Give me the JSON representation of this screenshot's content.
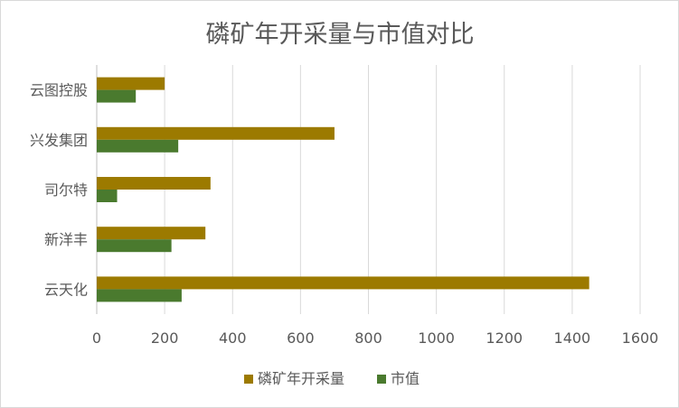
{
  "chart_data": {
    "type": "bar",
    "orientation": "horizontal",
    "title": "磷矿年开采量与市值对比",
    "categories": [
      "云图控股",
      "兴发集团",
      "司尔特",
      "新洋丰",
      "云天化"
    ],
    "series": [
      {
        "name": "磷矿年开采量",
        "color": "#9c7a00",
        "values": [
          200,
          700,
          335,
          320,
          1450
        ]
      },
      {
        "name": "市值",
        "color": "#4a7a2e",
        "values": [
          115,
          240,
          60,
          220,
          250
        ]
      }
    ],
    "xlim": [
      0,
      1600
    ],
    "xticks": [
      "0",
      "200",
      "400",
      "600",
      "800",
      "1000",
      "1200",
      "1400",
      "1600"
    ],
    "grid": true,
    "legend_position": "bottom",
    "xlabel": "",
    "ylabel": ""
  }
}
